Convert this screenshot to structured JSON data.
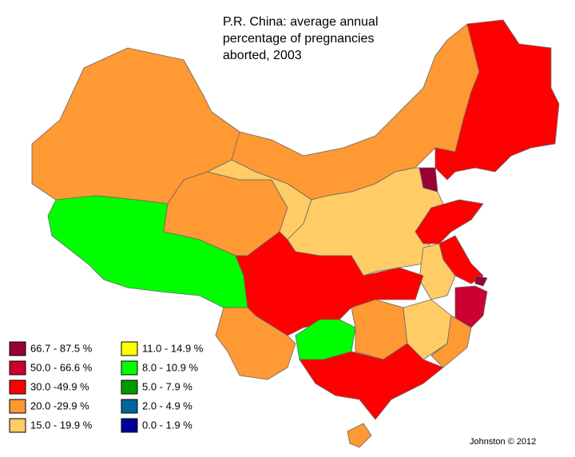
{
  "title_lines": [
    "P.R. China:  average annual",
    "percentage of pregnancies",
    "aborted, 2003"
  ],
  "legend": [
    {
      "label": "66.7 - 87.5 %",
      "color": "#990033"
    },
    {
      "label": "50.0 - 66.6 %",
      "color": "#cc0033"
    },
    {
      "label": "30.0 -49.9 %",
      "color": "#ff0000"
    },
    {
      "label": "20.0 -29.9 %",
      "color": "#ff9933"
    },
    {
      "label": "15.0 - 19.9 %",
      "color": "#ffcc66"
    },
    {
      "label": "11.0 - 14.9 %",
      "color": "#ffff00"
    },
    {
      "label": "8.0 - 10.9 %",
      "color": "#00ff00"
    },
    {
      "label": "5.0 -  7.9 %",
      "color": "#009900"
    },
    {
      "label": "2.0 -  4.9 %",
      "color": "#006699"
    },
    {
      "label": "0.0 -  1.9 %",
      "color": "#000099"
    }
  ],
  "credit": "Johnston © 2012"
}
